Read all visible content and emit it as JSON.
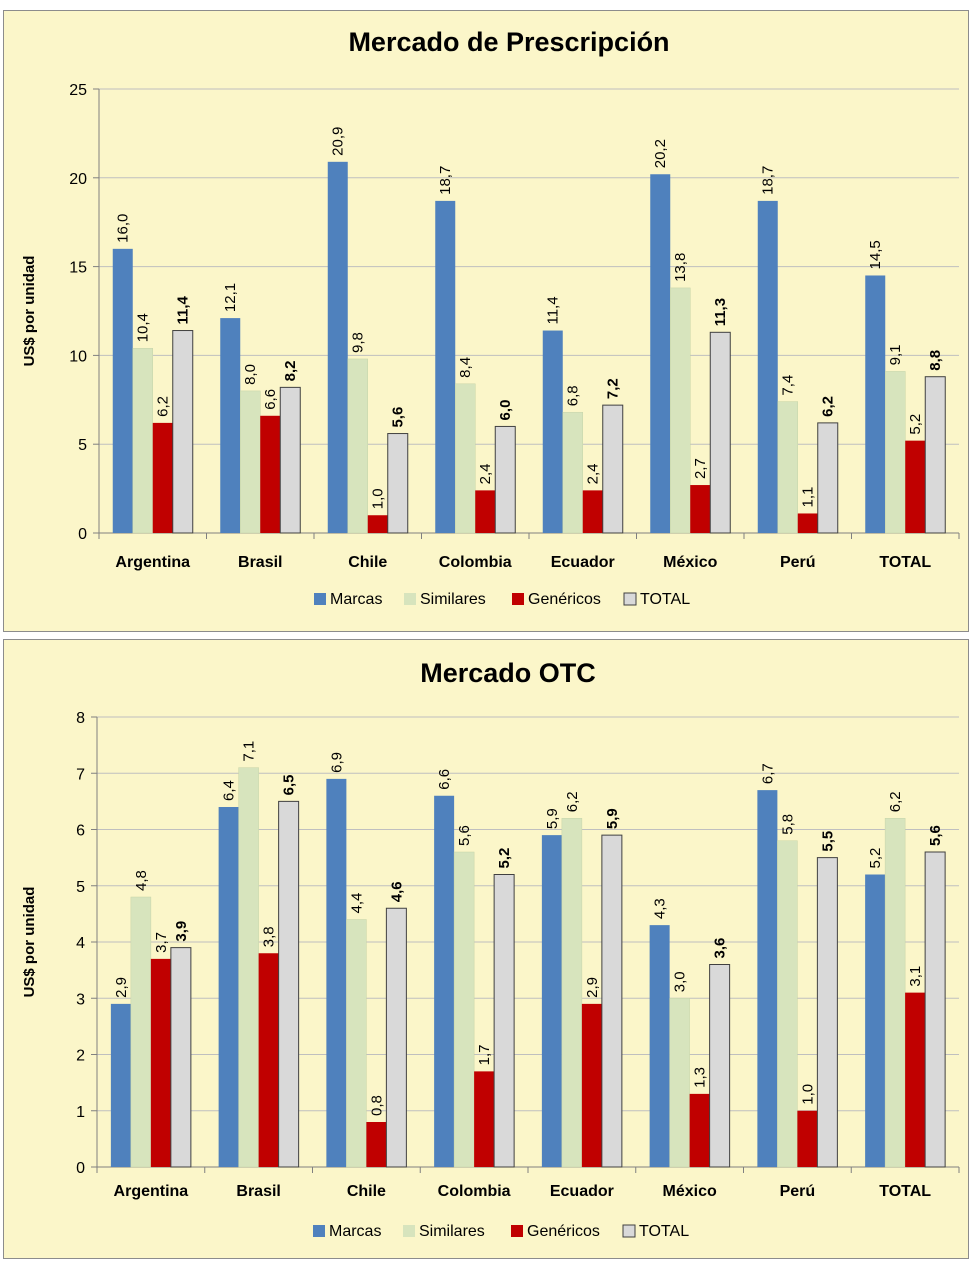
{
  "colors": {
    "Marcas": "#4f81bd",
    "Similares": "#d7e4bd",
    "Genéricos": "#c00000",
    "TOTAL": "#d9d9d9",
    "panel_bg": "#fbf6c9",
    "grid": "#bfbfbf"
  },
  "chart_data": [
    {
      "type": "bar",
      "title": "Mercado de Prescripción",
      "ylabel": "US$  por unidad",
      "xlabel": "",
      "ylim": [
        0,
        25
      ],
      "yticks": [
        "0",
        "5",
        "10",
        "15",
        "20",
        "25"
      ],
      "grid": true,
      "legend_position": "bottom",
      "categories": [
        "Argentina",
        "Brasil",
        "Chile",
        "Colombia",
        "Ecuador",
        "México",
        "Perú",
        "TOTAL"
      ],
      "series": [
        {
          "name": "Marcas",
          "values": [
            16.0,
            12.1,
            20.9,
            18.7,
            11.4,
            20.2,
            18.7,
            14.5
          ],
          "labels": [
            "16,0",
            "12,1",
            "20,9",
            "18,7",
            "11,4",
            "20,2",
            "18,7",
            "14,5"
          ]
        },
        {
          "name": "Similares",
          "values": [
            10.4,
            8.0,
            9.8,
            8.4,
            6.8,
            13.8,
            7.4,
            9.1
          ],
          "labels": [
            "10,4",
            "8,0",
            "9,8",
            "8,4",
            "6,8",
            "13,8",
            "7,4",
            "9,1"
          ]
        },
        {
          "name": "Genéricos",
          "values": [
            6.2,
            6.6,
            1.0,
            2.4,
            2.4,
            2.7,
            1.1,
            5.2
          ],
          "labels": [
            "6,2",
            "6,6",
            "1,0",
            "2,4",
            "2,4",
            "2,7",
            "1,1",
            "5,2"
          ]
        },
        {
          "name": "TOTAL",
          "values": [
            11.4,
            8.2,
            5.6,
            6.0,
            7.2,
            11.3,
            6.2,
            8.8
          ],
          "labels": [
            "11,4",
            "8,2",
            "5,6",
            "6,0",
            "7,2",
            "11,3",
            "6,2",
            "8,8"
          ]
        }
      ]
    },
    {
      "type": "bar",
      "title": "Mercado OTC",
      "ylabel": "US$  por unidad",
      "xlabel": "",
      "ylim": [
        0,
        8
      ],
      "yticks": [
        "0",
        "1",
        "2",
        "3",
        "4",
        "5",
        "6",
        "7",
        "8"
      ],
      "grid": true,
      "legend_position": "bottom",
      "categories": [
        "Argentina",
        "Brasil",
        "Chile",
        "Colombia",
        "Ecuador",
        "México",
        "Perú",
        "TOTAL"
      ],
      "series": [
        {
          "name": "Marcas",
          "values": [
            2.9,
            6.4,
            6.9,
            6.6,
            5.9,
            4.3,
            6.7,
            5.2
          ],
          "labels": [
            "2,9",
            "6,4",
            "6,9",
            "6,6",
            "5,9",
            "4,3",
            "6,7",
            "5,2"
          ]
        },
        {
          "name": "Similares",
          "values": [
            4.8,
            7.1,
            4.4,
            5.6,
            6.2,
            3.0,
            5.8,
            6.2
          ],
          "labels": [
            "4,8",
            "7,1",
            "4,4",
            "5,6",
            "6,2",
            "3,0",
            "5,8",
            "6,2"
          ]
        },
        {
          "name": "Genéricos",
          "values": [
            3.7,
            3.8,
            0.8,
            1.7,
            2.9,
            1.3,
            1.0,
            3.1
          ],
          "labels": [
            "3,7",
            "3,8",
            "0,8",
            "1,7",
            "2,9",
            "1,3",
            "1,0",
            "3,1"
          ]
        },
        {
          "name": "TOTAL",
          "values": [
            3.9,
            6.5,
            4.6,
            5.2,
            5.9,
            3.6,
            5.5,
            5.6
          ],
          "labels": [
            "3,9",
            "6,5",
            "4,6",
            "5,2",
            "5,9",
            "3,6",
            "5,5",
            "5,6"
          ]
        }
      ]
    }
  ]
}
